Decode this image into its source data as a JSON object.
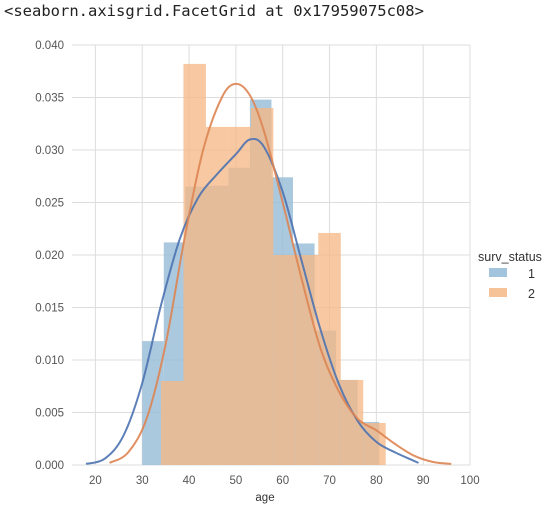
{
  "output_repr": "<seaborn.axisgrid.FacetGrid at 0x17959075c08>",
  "chart_data": {
    "type": "bar",
    "subtype": "histogram with kde",
    "title": "",
    "xlabel": "age",
    "ylabel": "",
    "xlim": [
      15,
      100
    ],
    "ylim": [
      0,
      0.04
    ],
    "xticks": [
      "20",
      "30",
      "40",
      "50",
      "60",
      "70",
      "80",
      "90",
      "100"
    ],
    "yticks": [
      "0.000",
      "0.005",
      "0.010",
      "0.015",
      "0.020",
      "0.025",
      "0.030",
      "0.035",
      "0.040"
    ],
    "grid": true,
    "legend": {
      "title": "surv_status",
      "placement": "right"
    },
    "series": [
      {
        "name": "1",
        "color": "#92bad6",
        "kde_color": "#4c72b0",
        "bins": [
          {
            "x0": 30.0,
            "x1": 34.6,
            "value": 0.0118
          },
          {
            "x0": 34.6,
            "x1": 39.2,
            "value": 0.0212
          },
          {
            "x0": 39.2,
            "x1": 43.8,
            "value": 0.0265
          },
          {
            "x0": 43.8,
            "x1": 48.4,
            "value": 0.0266
          },
          {
            "x0": 48.4,
            "x1": 53.0,
            "value": 0.0283
          },
          {
            "x0": 53.0,
            "x1": 57.6,
            "value": 0.0348
          },
          {
            "x0": 57.6,
            "x1": 62.2,
            "value": 0.0274
          },
          {
            "x0": 62.2,
            "x1": 66.8,
            "value": 0.0211
          },
          {
            "x0": 66.8,
            "x1": 71.4,
            "value": 0.0128
          },
          {
            "x0": 71.4,
            "x1": 76.0,
            "value": 0.0081
          },
          {
            "x0": 76.0,
            "x1": 80.6,
            "value": 0.0041
          }
        ],
        "kde": {
          "x": [
            18,
            22,
            26,
            30,
            34,
            38,
            42,
            46,
            50,
            53,
            56,
            60,
            64,
            68,
            72,
            76,
            80,
            84,
            88,
            89
          ],
          "y": [
            0.0001,
            0.0006,
            0.0028,
            0.0078,
            0.0152,
            0.0215,
            0.0255,
            0.0277,
            0.0296,
            0.031,
            0.0303,
            0.026,
            0.0195,
            0.013,
            0.0077,
            0.0042,
            0.0022,
            0.0012,
            0.0004,
            0.0002
          ]
        }
      },
      {
        "name": "2",
        "color": "#f5b887",
        "kde_color": "#dd8452",
        "bins": [
          {
            "x0": 34.0,
            "x1": 38.8,
            "value": 0.008
          },
          {
            "x0": 38.8,
            "x1": 43.6,
            "value": 0.0382
          },
          {
            "x0": 43.6,
            "x1": 48.4,
            "value": 0.0322
          },
          {
            "x0": 48.4,
            "x1": 53.2,
            "value": 0.0322
          },
          {
            "x0": 53.2,
            "x1": 58.0,
            "value": 0.034
          },
          {
            "x0": 58.0,
            "x1": 62.8,
            "value": 0.02
          },
          {
            "x0": 62.8,
            "x1": 67.6,
            "value": 0.02
          },
          {
            "x0": 67.6,
            "x1": 72.4,
            "value": 0.0221
          },
          {
            "x0": 72.4,
            "x1": 77.2,
            "value": 0.0081
          },
          {
            "x0": 77.2,
            "x1": 82.0,
            "value": 0.004
          }
        ],
        "kde": {
          "x": [
            23,
            27,
            31,
            35,
            39,
            43,
            47,
            50,
            53,
            56,
            60,
            64,
            68,
            72,
            76,
            80,
            84,
            88,
            92,
            96
          ],
          "y": [
            0.0002,
            0.0012,
            0.0045,
            0.0115,
            0.0215,
            0.03,
            0.035,
            0.0363,
            0.0352,
            0.0318,
            0.025,
            0.0178,
            0.0112,
            0.007,
            0.0044,
            0.0033,
            0.002,
            0.0009,
            0.0003,
            0.0001
          ]
        }
      }
    ]
  }
}
